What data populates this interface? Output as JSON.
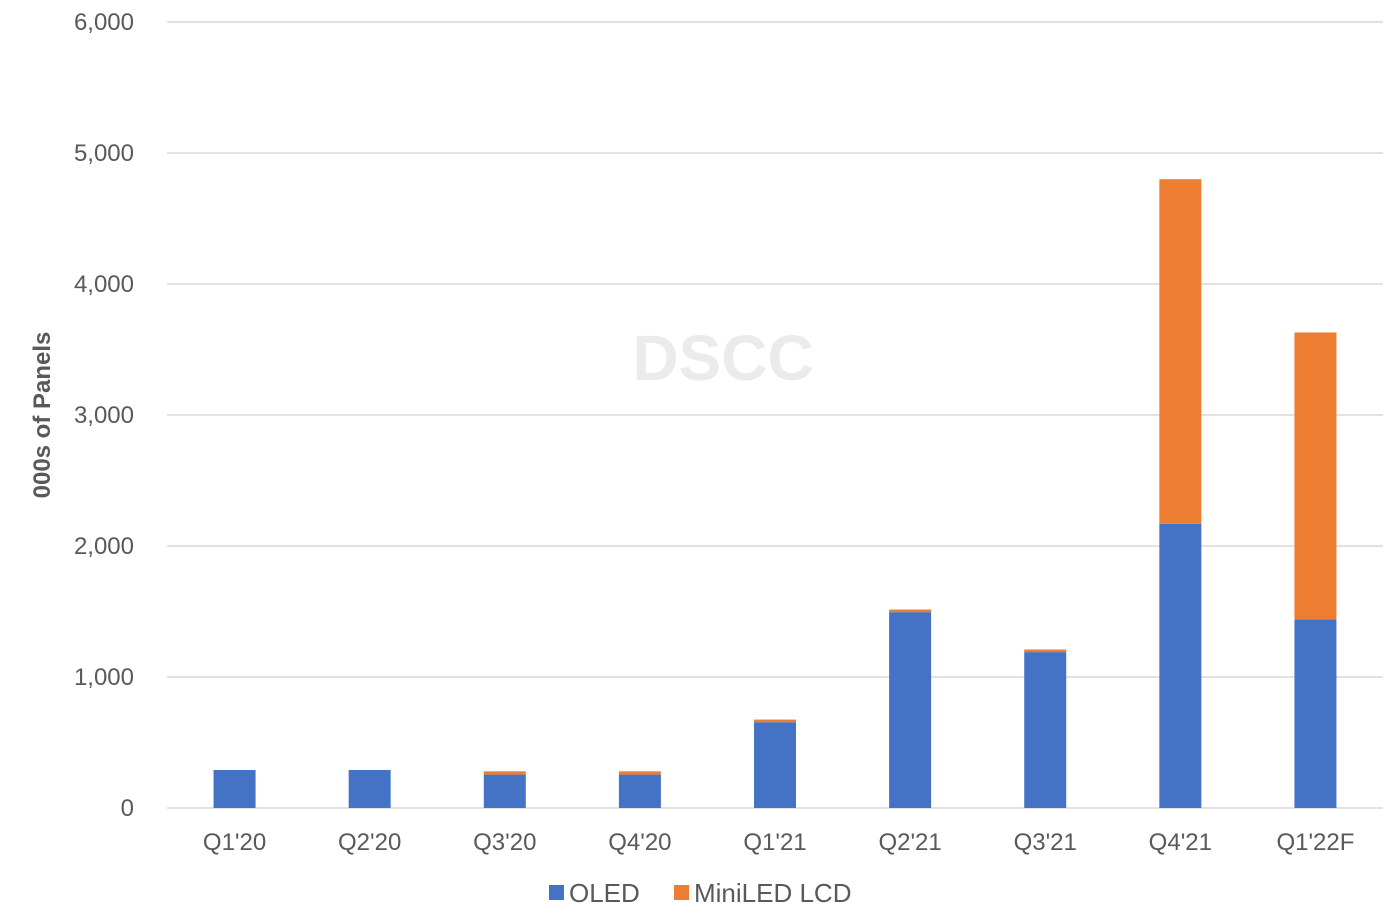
{
  "colors": {
    "oled": "#4472c4",
    "miniled": "#ed7d31",
    "grid": "#d9d9d9",
    "text": "#595959"
  },
  "watermark": "DSCC",
  "chart_data": {
    "type": "bar",
    "stacked": true,
    "categories": [
      "Q1'20",
      "Q2'20",
      "Q3'20",
      "Q4'20",
      "Q1'21",
      "Q2'21",
      "Q3'21",
      "Q4'21",
      "Q1'22F"
    ],
    "series": [
      {
        "name": "OLED",
        "color": "#4472c4",
        "values": [
          290,
          290,
          255,
          255,
          655,
          1495,
          1190,
          2170,
          1440
        ]
      },
      {
        "name": "MiniLED LCD",
        "color": "#ed7d31",
        "values": [
          0,
          0,
          25,
          25,
          20,
          20,
          20,
          2630,
          2190
        ]
      }
    ],
    "title": "",
    "xlabel": "",
    "ylabel": "000s of Panels",
    "ylim": [
      0,
      6000
    ],
    "yticks": [
      0,
      1000,
      2000,
      3000,
      4000,
      5000,
      6000
    ],
    "ytick_labels": [
      "0",
      "1,000",
      "2,000",
      "3,000",
      "4,000",
      "5,000",
      "6,000"
    ],
    "grid": true,
    "legend_position": "bottom-center"
  }
}
